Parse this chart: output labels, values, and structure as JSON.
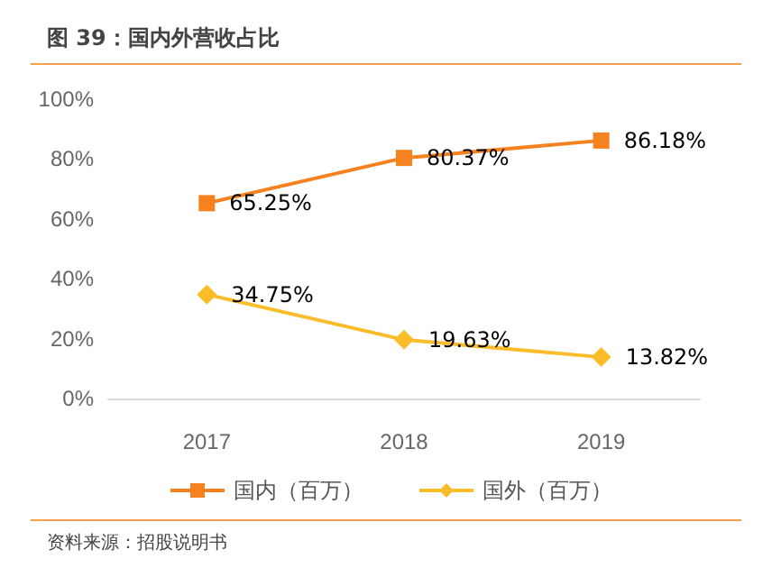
{
  "chart_data": {
    "type": "line",
    "title": "图 39：国内外营收占比",
    "annotations": [
      "资料来源：招股说明书"
    ],
    "categories": [
      "2017",
      "2018",
      "2019"
    ],
    "series": [
      {
        "name": "国内（百万）",
        "color": "#f5821f",
        "marker": "square",
        "values": [
          65.25,
          80.37,
          86.18
        ],
        "value_labels": [
          "65.25%",
          "80.37%",
          "86.18%"
        ]
      },
      {
        "name": "国外（百万）",
        "color": "#fbbc2a",
        "marker": "diamond",
        "values": [
          34.75,
          19.63,
          13.82
        ],
        "value_labels": [
          "34.75%",
          "19.63%",
          "13.82%"
        ]
      }
    ],
    "ylim": [
      0,
      100
    ],
    "yticks": [
      {
        "value": 0,
        "label": "0%"
      },
      {
        "value": 20,
        "label": "20%"
      },
      {
        "value": 40,
        "label": "40%"
      },
      {
        "value": 60,
        "label": "60%"
      },
      {
        "value": 80,
        "label": "80%"
      },
      {
        "value": 100,
        "label": "100%"
      }
    ],
    "grid": false,
    "legend": "bottom"
  }
}
